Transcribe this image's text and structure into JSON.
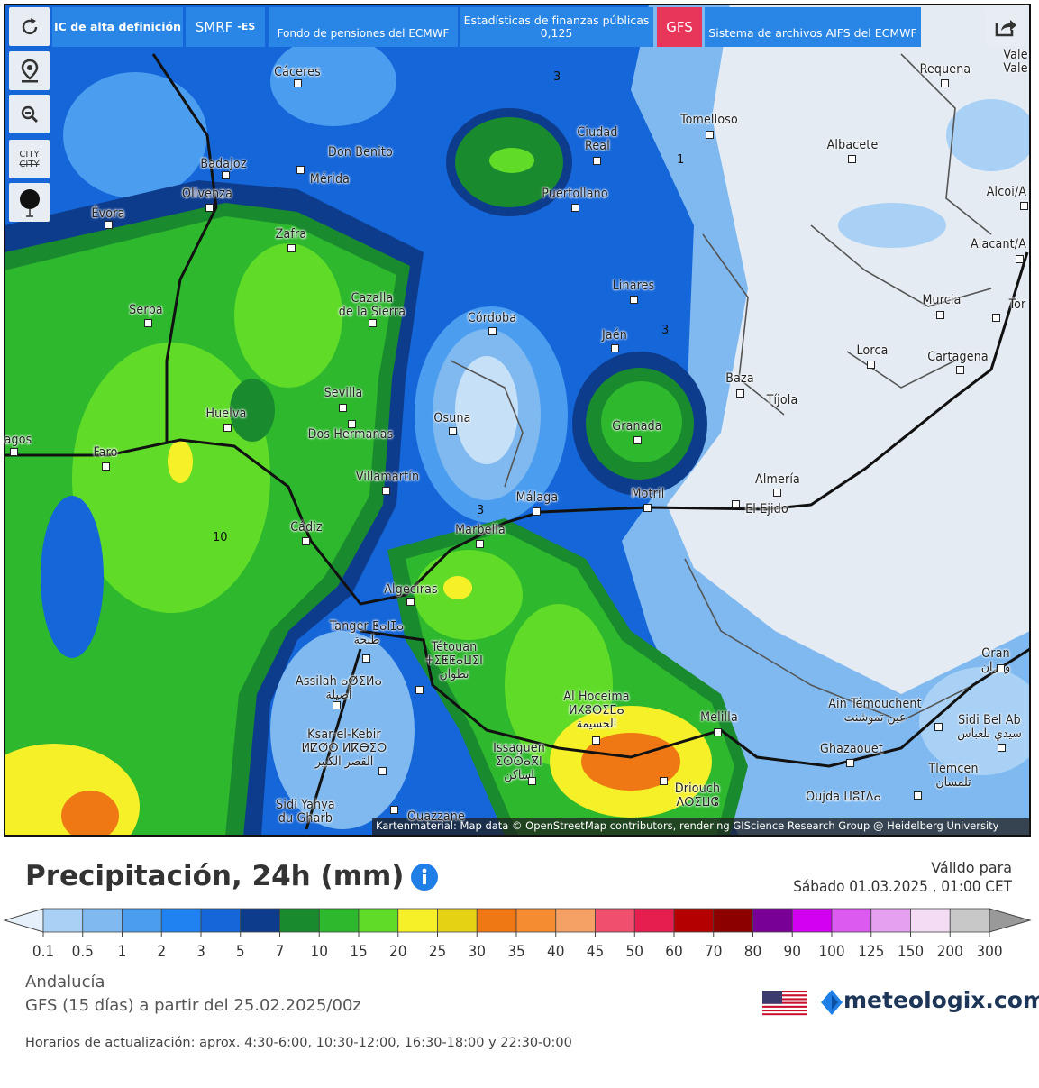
{
  "toolbar": {
    "buttons": [
      "IC de alta definición",
      "SMRF",
      "-ES",
      "Fondo de pensiones del ECMWF",
      "Estadísticas de finanzas públicas",
      "0,125",
      "GFS",
      "Sistema de archivos AIFS del ECMWF"
    ],
    "city_toggle": [
      "CITY",
      "CITY"
    ]
  },
  "map": {
    "cities": [
      [
        "Cáceres"
      ],
      [
        "Badajoz"
      ],
      [
        "Don Benito"
      ],
      [
        "Mérida"
      ],
      [
        "Olivenza"
      ],
      [
        "Évora"
      ],
      [
        "Ciudad",
        "Real"
      ],
      [
        "Puertollano"
      ],
      [
        "Tomelloso"
      ],
      [
        "Albacete"
      ],
      [
        "Requena"
      ],
      [
        "Vale",
        "Vale"
      ],
      [
        "Alcoi/A"
      ],
      [
        "Alacant/A"
      ],
      [
        "Murcia"
      ],
      [
        "Tor"
      ],
      [
        "Lorca"
      ],
      [
        "Cartagena"
      ],
      [
        "Zafra"
      ],
      [
        "Serpa"
      ],
      [
        "Cazalla",
        "de la Sierra"
      ],
      [
        "Córdoba"
      ],
      [
        "Linares"
      ],
      [
        "Jaén"
      ],
      [
        "Baza"
      ],
      [
        "Tíjola"
      ],
      [
        "Sevilla"
      ],
      [
        "Huelva"
      ],
      [
        "Osuna"
      ],
      [
        "Dos Hermanas"
      ],
      [
        "Granada"
      ],
      [
        "Faro"
      ],
      [
        "agos"
      ],
      [
        "Villamartín"
      ],
      [
        "Almería"
      ],
      [
        "El Ejido"
      ],
      [
        "Málaga"
      ],
      [
        "Motril"
      ],
      [
        "Cádiz"
      ],
      [
        "Marbella"
      ],
      [
        "Algeciras"
      ],
      [
        "Tanger ⵟⴰⵏⵊⴰ",
        "طنجة"
      ],
      [
        "Tétouan",
        "ⵜⵉⵟⵟⴰⵡⵉⵏ",
        "تطوان"
      ],
      [
        "Assilah ⴰⵚⵉⵍⴰ",
        "أصيلة"
      ],
      [
        "Ksar-el-Kebir",
        "ⵍⵇⵚⵔ ⵍⴽⴱⵉⵔ",
        "القصر الكبير"
      ],
      [
        "Sidi Yahya",
        "du Gharb"
      ],
      [
        "Issaguen",
        "ⵉⵙⵙⴰⴳⵏ",
        "اساكن"
      ],
      [
        "Al Hoceima",
        "ⵍⵃⵓⵙⵉⵎⴰ",
        "الحسيمة"
      ],
      [
        "Melilla"
      ],
      [
        "Driouch",
        "ⴷⵔⵉⵡⵛ"
      ],
      [
        "Ain Témouchent",
        "عين تموشنت"
      ],
      [
        "Sidi Bel Ab",
        "سيدي بلعباس"
      ],
      [
        "Ghazaouet"
      ],
      [
        "Tlemcen",
        "تلمسان"
      ],
      [
        "Oujda ⵡⵓⵊⴷⴰ"
      ],
      [
        "Oran",
        "وهران"
      ],
      [
        "Ouazzane"
      ]
    ],
    "contour_labels": [
      "3",
      "1",
      "3",
      "3",
      "10"
    ],
    "attribution": "Kartenmaterial: Map data © OpenStreetMap contributors, rendering GIScience Research Group @ Heidelberg University"
  },
  "legend": {
    "title": "Precipitación, 24h (mm)",
    "valid_label": "Válido para",
    "valid_time": "Sábado 01.03.2025 , 01:00 CET",
    "ticks": [
      0.1,
      0.5,
      1,
      2,
      3,
      5,
      7,
      10,
      15,
      20,
      25,
      30,
      35,
      40,
      45,
      50,
      60,
      70,
      80,
      90,
      100,
      125,
      150,
      200,
      300
    ],
    "colors": [
      "#a9d1f5",
      "#7fb9f0",
      "#4b9df0",
      "#1f82f0",
      "#1566d8",
      "#0d3c8c",
      "#1a8a2e",
      "#2db82d",
      "#60dc28",
      "#f5f028",
      "#e6d214",
      "#f07814",
      "#f58c32",
      "#f5a064",
      "#f0506e",
      "#e61e50",
      "#b40000",
      "#8c0000",
      "#780096",
      "#d200f0",
      "#dc5af0",
      "#e6a0f0",
      "#f5dcf5",
      "#c8c8c8"
    ],
    "below_color": "#e6f0fa",
    "above_color": "#999999"
  },
  "footer": {
    "region": "Andalucía",
    "model": "GFS (15 días) a partir del 25.02.2025/00z",
    "update": "Horarios de actualización: aprox. 4:30-6:00, 10:30-12:00, 16:30-18:00 y 22:30-0:00",
    "logo": "meteologix.com"
  }
}
